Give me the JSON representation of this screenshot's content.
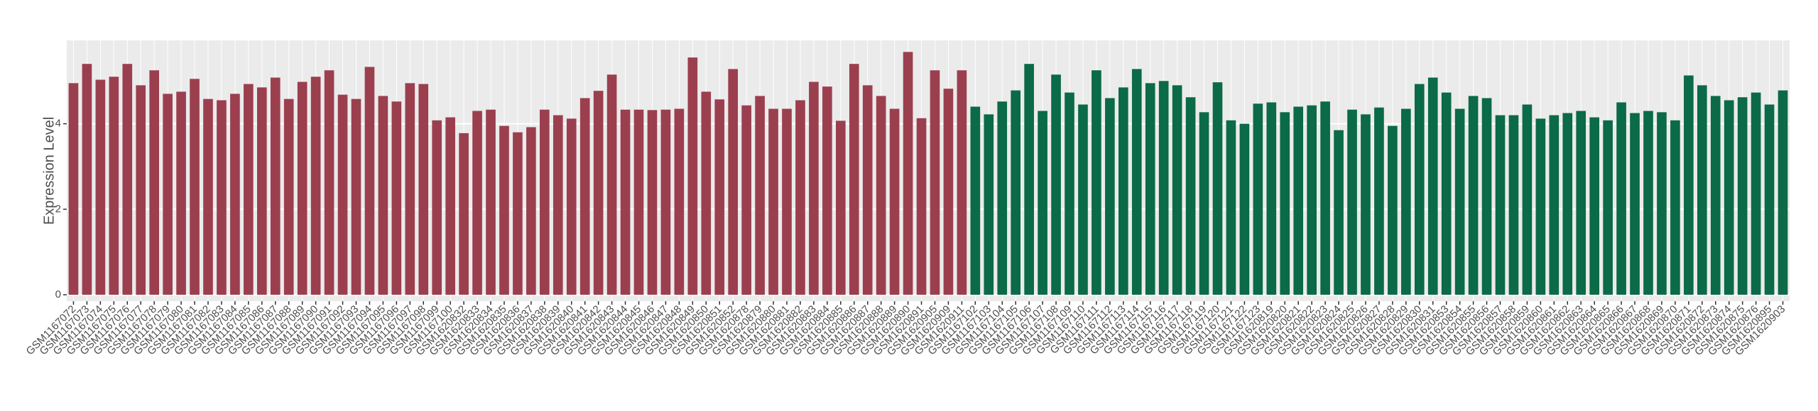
{
  "chart_data": {
    "type": "bar",
    "y_label": "Expression Level",
    "categories": [
      "GSM1167072",
      "GSM1167073",
      "GSM1167074",
      "GSM1167075",
      "GSM1167076",
      "GSM1167077",
      "GSM1167078",
      "GSM1167079",
      "GSM1167080",
      "GSM1167081",
      "GSM1167082",
      "GSM1167083",
      "GSM1167084",
      "GSM1167085",
      "GSM1167086",
      "GSM1167087",
      "GSM1167088",
      "GSM1167089",
      "GSM1167090",
      "GSM1167091",
      "GSM1167092",
      "GSM1167093",
      "GSM1167094",
      "GSM1167095",
      "GSM1167096",
      "GSM1167097",
      "GSM1167098",
      "GSM1167099",
      "GSM1167100",
      "GSM1620832",
      "GSM1620833",
      "GSM1620834",
      "GSM1620835",
      "GSM1620836",
      "GSM1620837",
      "GSM1620838",
      "GSM1620839",
      "GSM1620840",
      "GSM1620841",
      "GSM1620842",
      "GSM1620843",
      "GSM1620844",
      "GSM1620845",
      "GSM1620846",
      "GSM1620847",
      "GSM1620848",
      "GSM1620849",
      "GSM1620850",
      "GSM1620851",
      "GSM1620852",
      "GSM1620878",
      "GSM1620879",
      "GSM1620880",
      "GSM1620881",
      "GSM1620882",
      "GSM1620883",
      "GSM1620884",
      "GSM1620885",
      "GSM1620886",
      "GSM1620887",
      "GSM1620888",
      "GSM1620889",
      "GSM1620890",
      "GSM1620891",
      "GSM1620905",
      "GSM1620909",
      "GSM1620911",
      "GSM1167102",
      "GSM1167103",
      "GSM1167104",
      "GSM1167105",
      "GSM1167106",
      "GSM1167107",
      "GSM1167108",
      "GSM1167109",
      "GSM1167110",
      "GSM1167111",
      "GSM1167112",
      "GSM1167113",
      "GSM1167114",
      "GSM1167115",
      "GSM1167116",
      "GSM1167117",
      "GSM1167118",
      "GSM1167119",
      "GSM1167120",
      "GSM1167121",
      "GSM1167122",
      "GSM1167123",
      "GSM1620819",
      "GSM1620820",
      "GSM1620821",
      "GSM1620822",
      "GSM1620823",
      "GSM1620824",
      "GSM1620825",
      "GSM1620826",
      "GSM1620827",
      "GSM1620828",
      "GSM1620829",
      "GSM1620830",
      "GSM1620831",
      "GSM1620853",
      "GSM1620854",
      "GSM1620855",
      "GSM1620856",
      "GSM1620857",
      "GSM1620858",
      "GSM1620859",
      "GSM1620860",
      "GSM1620861",
      "GSM1620862",
      "GSM1620863",
      "GSM1620864",
      "GSM1620865",
      "GSM1620866",
      "GSM1620867",
      "GSM1620868",
      "GSM1620869",
      "GSM1620870",
      "GSM1620871",
      "GSM1620872",
      "GSM1620873",
      "GSM1620874",
      "GSM1620875",
      "GSM1620876",
      "GSM1620895",
      "GSM1620903"
    ],
    "values": [
      4.95,
      5.4,
      5.03,
      5.1,
      5.4,
      4.9,
      5.25,
      4.7,
      4.75,
      5.05,
      4.58,
      4.55,
      4.7,
      4.93,
      4.85,
      5.08,
      4.58,
      4.98,
      5.1,
      5.25,
      4.68,
      4.58,
      5.33,
      4.65,
      4.52,
      4.95,
      4.93,
      4.08,
      4.15,
      3.78,
      4.3,
      4.33,
      3.95,
      3.8,
      3.92,
      4.33,
      4.2,
      4.12,
      4.6,
      4.77,
      5.15,
      4.33,
      4.33,
      4.32,
      4.33,
      4.35,
      5.55,
      4.75,
      4.57,
      5.28,
      4.43,
      4.65,
      4.35,
      4.35,
      4.55,
      4.98,
      4.87,
      4.07,
      5.4,
      4.9,
      4.65,
      4.35,
      5.68,
      4.13,
      5.25,
      4.82,
      5.25,
      4.4,
      4.22,
      4.52,
      4.78,
      5.4,
      4.3,
      5.15,
      4.73,
      4.45,
      5.25,
      4.6,
      4.85,
      5.28,
      4.95,
      5.0,
      4.9,
      4.62,
      4.27,
      4.97,
      4.08,
      4.0,
      4.47,
      4.5,
      4.27,
      4.4,
      4.43,
      4.52,
      3.85,
      4.33,
      4.22,
      4.38,
      3.95,
      4.35,
      4.93,
      5.08,
      4.73,
      4.35,
      4.65,
      4.6,
      4.2,
      4.2,
      4.45,
      4.12,
      4.2,
      4.25,
      4.3,
      4.15,
      4.08,
      4.5,
      4.25,
      4.3,
      4.27,
      4.08,
      5.13,
      4.9,
      4.65,
      4.55,
      4.62,
      4.73,
      4.45,
      4.78
    ],
    "colors": [
      "#9b3f4f",
      "#9b3f4f",
      "#9b3f4f",
      "#9b3f4f",
      "#9b3f4f",
      "#9b3f4f",
      "#9b3f4f",
      "#9b3f4f",
      "#9b3f4f",
      "#9b3f4f",
      "#9b3f4f",
      "#9b3f4f",
      "#9b3f4f",
      "#9b3f4f",
      "#9b3f4f",
      "#9b3f4f",
      "#9b3f4f",
      "#9b3f4f",
      "#9b3f4f",
      "#9b3f4f",
      "#9b3f4f",
      "#9b3f4f",
      "#9b3f4f",
      "#9b3f4f",
      "#9b3f4f",
      "#9b3f4f",
      "#9b3f4f",
      "#9b3f4f",
      "#9b3f4f",
      "#9b3f4f",
      "#9b3f4f",
      "#9b3f4f",
      "#9b3f4f",
      "#9b3f4f",
      "#9b3f4f",
      "#9b3f4f",
      "#9b3f4f",
      "#9b3f4f",
      "#9b3f4f",
      "#9b3f4f",
      "#9b3f4f",
      "#9b3f4f",
      "#9b3f4f",
      "#9b3f4f",
      "#9b3f4f",
      "#9b3f4f",
      "#9b3f4f",
      "#9b3f4f",
      "#9b3f4f",
      "#9b3f4f",
      "#9b3f4f",
      "#9b3f4f",
      "#9b3f4f",
      "#9b3f4f",
      "#9b3f4f",
      "#9b3f4f",
      "#9b3f4f",
      "#9b3f4f",
      "#9b3f4f",
      "#9b3f4f",
      "#9b3f4f",
      "#9b3f4f",
      "#9b3f4f",
      "#9b3f4f",
      "#9b3f4f",
      "#9b3f4f",
      "#9b3f4f",
      "#0b6a47",
      "#0b6a47",
      "#0b6a47",
      "#0b6a47",
      "#0b6a47",
      "#0b6a47",
      "#0b6a47",
      "#0b6a47",
      "#0b6a47",
      "#0b6a47",
      "#0b6a47",
      "#0b6a47",
      "#0b6a47",
      "#0b6a47",
      "#0b6a47",
      "#0b6a47",
      "#0b6a47",
      "#0b6a47",
      "#0b6a47",
      "#0b6a47",
      "#0b6a47",
      "#0b6a47",
      "#0b6a47",
      "#0b6a47",
      "#0b6a47",
      "#0b6a47",
      "#0b6a47",
      "#0b6a47",
      "#0b6a47",
      "#0b6a47",
      "#0b6a47",
      "#0b6a47",
      "#0b6a47",
      "#0b6a47",
      "#0b6a47",
      "#0b6a47",
      "#0b6a47",
      "#0b6a47",
      "#0b6a47",
      "#0b6a47",
      "#0b6a47",
      "#0b6a47",
      "#0b6a47",
      "#0b6a47",
      "#0b6a47",
      "#0b6a47",
      "#0b6a47",
      "#0b6a47",
      "#0b6a47",
      "#0b6a47",
      "#0b6a47",
      "#0b6a47",
      "#0b6a47",
      "#0b6a47",
      "#0b6a47",
      "#0b6a47",
      "#0b6a47",
      "#0b6a47",
      "#0b6a47",
      "#0b6a47",
      "#0b6a47"
    ],
    "ylim": [
      -0.15,
      5.95
    ],
    "yticks": [
      0,
      2,
      4
    ],
    "grid": true
  }
}
